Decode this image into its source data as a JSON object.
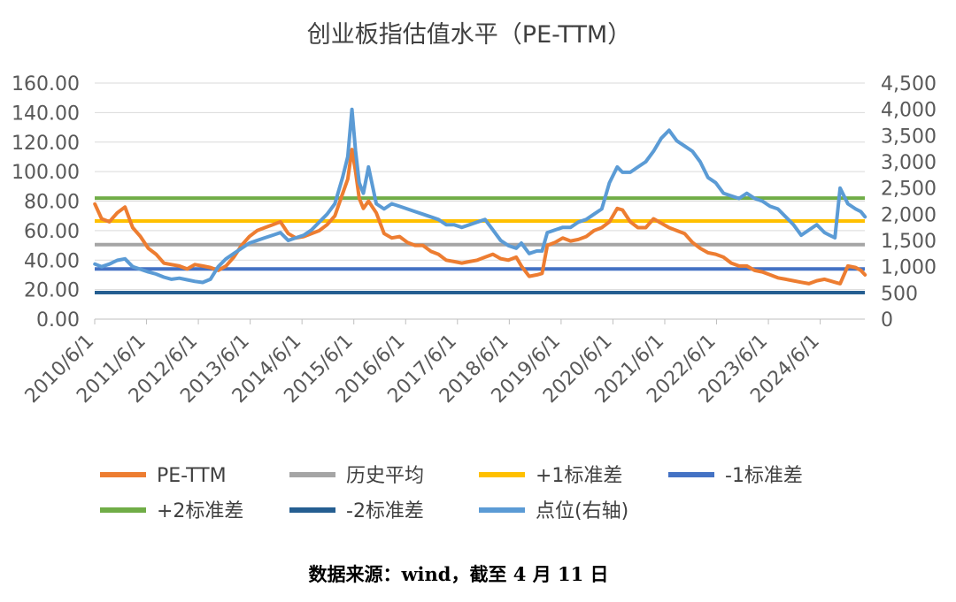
{
  "chart_data": {
    "type": "line",
    "title": "创业板指估值水平（PE-TTM）",
    "source": "数据来源：wind，截至 4 月 11 日",
    "x_tick_labels": [
      "2010/6/1",
      "2011/6/1",
      "2012/6/1",
      "2013/6/1",
      "2014/6/1",
      "2015/6/1",
      "2016/6/1",
      "2017/6/1",
      "2018/6/1",
      "2019/6/1",
      "2020/6/1",
      "2021/6/1",
      "2022/6/1",
      "2023/6/1",
      "2024/6/1"
    ],
    "x_range": [
      "2010/6/1",
      "2025/4/11"
    ],
    "y_left": {
      "ticks": [
        "0.00",
        "20.00",
        "40.00",
        "60.00",
        "80.00",
        "100.00",
        "120.00",
        "140.00",
        "160.00"
      ],
      "range": [
        0,
        160
      ]
    },
    "y_right": {
      "ticks": [
        "0",
        "500",
        "1,000",
        "1,500",
        "2,000",
        "2,500",
        "3,000",
        "3,500",
        "4,000",
        "4,500"
      ],
      "range": [
        0,
        4500
      ]
    },
    "grid": true,
    "legend_position": "bottom",
    "series": [
      {
        "name": "PE-TTM",
        "axis": "left",
        "color": "#ED7D31",
        "kind": "line",
        "x": [
          2010.42,
          2010.55,
          2010.7,
          2010.85,
          2011.0,
          2011.15,
          2011.3,
          2011.45,
          2011.6,
          2011.75,
          2011.9,
          2012.05,
          2012.2,
          2012.35,
          2012.5,
          2012.65,
          2012.8,
          2012.95,
          2013.1,
          2013.25,
          2013.4,
          2013.55,
          2013.7,
          2013.85,
          2014.0,
          2014.15,
          2014.3,
          2014.45,
          2014.6,
          2014.75,
          2014.9,
          2015.05,
          2015.2,
          2015.3,
          2015.38,
          2015.45,
          2015.52,
          2015.6,
          2015.7,
          2015.85,
          2016.0,
          2016.15,
          2016.3,
          2016.45,
          2016.6,
          2016.75,
          2016.9,
          2017.05,
          2017.2,
          2017.35,
          2017.5,
          2017.65,
          2017.8,
          2017.95,
          2018.1,
          2018.25,
          2018.4,
          2018.55,
          2018.65,
          2018.8,
          2018.95,
          2019.05,
          2019.15,
          2019.3,
          2019.45,
          2019.6,
          2019.75,
          2019.9,
          2020.05,
          2020.2,
          2020.35,
          2020.5,
          2020.6,
          2020.75,
          2020.9,
          2021.05,
          2021.2,
          2021.35,
          2021.5,
          2021.65,
          2021.8,
          2021.95,
          2022.1,
          2022.25,
          2022.4,
          2022.55,
          2022.7,
          2022.85,
          2023.0,
          2023.15,
          2023.3,
          2023.45,
          2023.6,
          2023.75,
          2023.9,
          2024.05,
          2024.2,
          2024.35,
          2024.5,
          2024.6,
          2024.7,
          2024.8,
          2024.95,
          2025.1,
          2025.2,
          2025.28
        ],
        "values": [
          78,
          68,
          66,
          72,
          76,
          62,
          56,
          48,
          44,
          38,
          37,
          36,
          34,
          37,
          36,
          35,
          33,
          36,
          42,
          50,
          56,
          60,
          62,
          64,
          66,
          58,
          55,
          56,
          58,
          60,
          64,
          70,
          85,
          95,
          115,
          100,
          82,
          75,
          80,
          72,
          58,
          55,
          56,
          52,
          50,
          50,
          46,
          44,
          40,
          39,
          38,
          39,
          40,
          42,
          44,
          41,
          40,
          42,
          36,
          29,
          30,
          31,
          50,
          52,
          55,
          53,
          54,
          56,
          60,
          62,
          66,
          75,
          74,
          66,
          62,
          62,
          68,
          65,
          62,
          60,
          58,
          52,
          48,
          45,
          44,
          42,
          38,
          36,
          36,
          33,
          32,
          30,
          28,
          27,
          26,
          25,
          24,
          26,
          27,
          26,
          25,
          24,
          36,
          35,
          33,
          30
        ]
      },
      {
        "name": "历史平均",
        "axis": "left",
        "color": "#A5A5A5",
        "kind": "hline",
        "value": 50.5
      },
      {
        "name": "+1标准差",
        "axis": "left",
        "color": "#FFC000",
        "kind": "hline",
        "value": 66.5
      },
      {
        "name": "-1标准差",
        "axis": "left",
        "color": "#4472C4",
        "kind": "hline",
        "value": 34.0
      },
      {
        "name": "+2标准差",
        "axis": "left",
        "color": "#70AD47",
        "kind": "hline",
        "value": 82.0
      },
      {
        "name": "-2标准差",
        "axis": "left",
        "color": "#255E91",
        "kind": "hline",
        "value": 18.0
      },
      {
        "name": "点位(右轴)",
        "axis": "right",
        "color": "#5B9BD5",
        "kind": "line",
        "x": [
          2010.42,
          2010.55,
          2010.7,
          2010.85,
          2011.0,
          2011.15,
          2011.3,
          2011.45,
          2011.6,
          2011.75,
          2011.9,
          2012.05,
          2012.2,
          2012.35,
          2012.5,
          2012.65,
          2012.8,
          2012.95,
          2013.1,
          2013.25,
          2013.4,
          2013.55,
          2013.7,
          2013.85,
          2014.0,
          2014.15,
          2014.3,
          2014.45,
          2014.6,
          2014.75,
          2014.9,
          2015.05,
          2015.2,
          2015.3,
          2015.38,
          2015.45,
          2015.52,
          2015.6,
          2015.7,
          2015.85,
          2016.0,
          2016.15,
          2016.3,
          2016.45,
          2016.6,
          2016.75,
          2016.9,
          2017.05,
          2017.2,
          2017.35,
          2017.5,
          2017.65,
          2017.8,
          2017.95,
          2018.1,
          2018.25,
          2018.4,
          2018.55,
          2018.65,
          2018.8,
          2018.95,
          2019.05,
          2019.15,
          2019.3,
          2019.45,
          2019.6,
          2019.75,
          2019.9,
          2020.05,
          2020.2,
          2020.35,
          2020.5,
          2020.6,
          2020.75,
          2020.9,
          2021.05,
          2021.2,
          2021.35,
          2021.5,
          2021.65,
          2021.8,
          2021.95,
          2022.1,
          2022.25,
          2022.4,
          2022.55,
          2022.7,
          2022.85,
          2023.0,
          2023.15,
          2023.3,
          2023.45,
          2023.6,
          2023.75,
          2023.9,
          2024.05,
          2024.2,
          2024.35,
          2024.5,
          2024.6,
          2024.7,
          2024.8,
          2024.95,
          2025.1,
          2025.2,
          2025.28
        ],
        "values": [
          1050,
          1000,
          1050,
          1120,
          1150,
          1000,
          950,
          900,
          860,
          800,
          760,
          780,
          750,
          720,
          700,
          760,
          1000,
          1150,
          1250,
          1350,
          1450,
          1500,
          1550,
          1600,
          1650,
          1500,
          1550,
          1600,
          1700,
          1850,
          2000,
          2200,
          2700,
          3100,
          4000,
          3200,
          2600,
          2400,
          2900,
          2200,
          2100,
          2200,
          2150,
          2100,
          2050,
          2000,
          1950,
          1900,
          1800,
          1800,
          1750,
          1800,
          1850,
          1900,
          1700,
          1500,
          1400,
          1350,
          1450,
          1250,
          1300,
          1300,
          1650,
          1700,
          1750,
          1750,
          1850,
          1900,
          2000,
          2100,
          2600,
          2900,
          2800,
          2800,
          2900,
          3000,
          3200,
          3450,
          3600,
          3400,
          3300,
          3200,
          3000,
          2700,
          2600,
          2400,
          2350,
          2300,
          2400,
          2300,
          2250,
          2150,
          2100,
          1950,
          1800,
          1600,
          1700,
          1800,
          1650,
          1600,
          1550,
          2500,
          2200,
          2100,
          2050,
          1950
        ]
      }
    ]
  }
}
